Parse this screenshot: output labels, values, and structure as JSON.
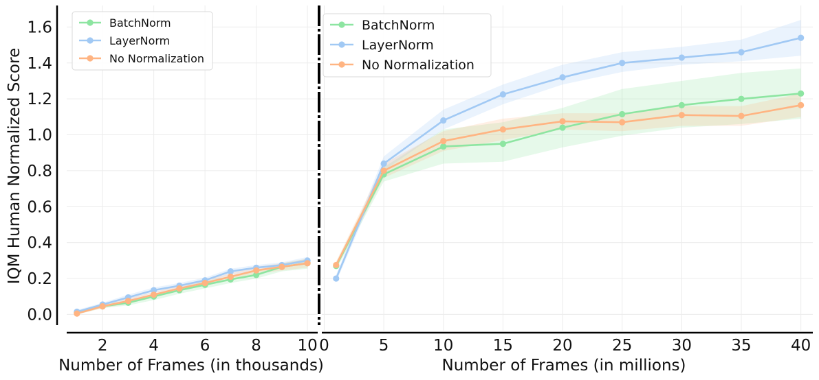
{
  "chart_data": [
    {
      "type": "line",
      "ylabel": "IQM Human Normalized Score",
      "xlabel": "Number of Frames (in thousands)",
      "xlim": [
        0.6,
        10.4
      ],
      "ylim": [
        -0.09,
        1.72
      ],
      "xticks": [
        2,
        4,
        6,
        8,
        10
      ],
      "yticks": [
        0.0,
        0.2,
        0.4,
        0.6,
        0.8,
        1.0,
        1.2,
        1.4,
        1.6
      ],
      "ytick_labels": [
        "0.0",
        "0.2",
        "0.4",
        "0.6",
        "0.8",
        "1.0",
        "1.2",
        "1.4",
        "1.6"
      ],
      "grid": true,
      "legend_position": "top-left",
      "x": [
        1,
        2,
        3,
        4,
        5,
        6,
        7,
        8,
        9,
        10
      ],
      "series": [
        {
          "name": "BatchNorm",
          "color": "#8de5a1",
          "values": [
            0.01,
            0.045,
            0.065,
            0.1,
            0.135,
            0.165,
            0.195,
            0.22,
            0.265,
            0.285
          ],
          "lower": [
            0.0,
            0.035,
            0.05,
            0.08,
            0.115,
            0.145,
            0.175,
            0.2,
            0.24,
            0.255
          ],
          "upper": [
            0.02,
            0.055,
            0.08,
            0.115,
            0.15,
            0.185,
            0.215,
            0.24,
            0.285,
            0.31
          ]
        },
        {
          "name": "LayerNorm",
          "color": "#a1c9f4",
          "values": [
            0.015,
            0.055,
            0.095,
            0.135,
            0.16,
            0.19,
            0.24,
            0.26,
            0.275,
            0.3
          ],
          "lower": [
            0.005,
            0.045,
            0.08,
            0.12,
            0.145,
            0.175,
            0.22,
            0.245,
            0.26,
            0.285
          ],
          "upper": [
            0.025,
            0.065,
            0.11,
            0.15,
            0.175,
            0.205,
            0.255,
            0.275,
            0.29,
            0.32
          ]
        },
        {
          "name": "No Normalization",
          "color": "#ffb482",
          "values": [
            0.005,
            0.045,
            0.075,
            0.11,
            0.145,
            0.175,
            0.21,
            0.245,
            0.265,
            0.285
          ],
          "lower": [
            0.0,
            0.035,
            0.06,
            0.095,
            0.13,
            0.16,
            0.19,
            0.225,
            0.245,
            0.26
          ],
          "upper": [
            0.015,
            0.055,
            0.09,
            0.125,
            0.16,
            0.19,
            0.23,
            0.265,
            0.285,
            0.31
          ]
        }
      ]
    },
    {
      "type": "line",
      "ylabel": "",
      "xlabel": "Number of Frames (in millions)",
      "xlim": [
        -0.2,
        41.0
      ],
      "ylim": [
        -0.09,
        1.72
      ],
      "xticks": [
        0,
        5,
        10,
        15,
        20,
        25,
        30,
        35,
        40
      ],
      "grid": true,
      "legend_position": "top-left",
      "x": [
        1,
        5,
        10,
        15,
        20,
        25,
        30,
        35,
        40
      ],
      "series": [
        {
          "name": "BatchNorm",
          "color": "#8de5a1",
          "values": [
            0.27,
            0.78,
            0.935,
            0.95,
            1.04,
            1.115,
            1.165,
            1.2,
            1.23
          ],
          "lower": [
            0.25,
            0.74,
            0.84,
            0.85,
            0.93,
            0.995,
            1.04,
            1.06,
            1.09
          ],
          "upper": [
            0.29,
            0.82,
            1.03,
            1.07,
            1.15,
            1.255,
            1.3,
            1.345,
            1.37
          ]
        },
        {
          "name": "LayerNorm",
          "color": "#a1c9f4",
          "values": [
            0.2,
            0.84,
            1.08,
            1.225,
            1.32,
            1.4,
            1.43,
            1.46,
            1.54
          ],
          "lower": [
            0.18,
            0.8,
            1.03,
            1.17,
            1.28,
            1.35,
            1.39,
            1.41,
            1.44
          ],
          "upper": [
            0.22,
            0.88,
            1.14,
            1.28,
            1.39,
            1.46,
            1.49,
            1.53,
            1.64
          ]
        },
        {
          "name": "No Normalization",
          "color": "#ffb482",
          "values": [
            0.275,
            0.8,
            0.965,
            1.03,
            1.075,
            1.07,
            1.11,
            1.105,
            1.165
          ],
          "lower": [
            0.255,
            0.76,
            0.91,
            0.97,
            1.03,
            1.02,
            1.05,
            1.05,
            1.1
          ],
          "upper": [
            0.295,
            0.84,
            1.02,
            1.09,
            1.12,
            1.12,
            1.16,
            1.16,
            1.23
          ]
        }
      ]
    }
  ]
}
